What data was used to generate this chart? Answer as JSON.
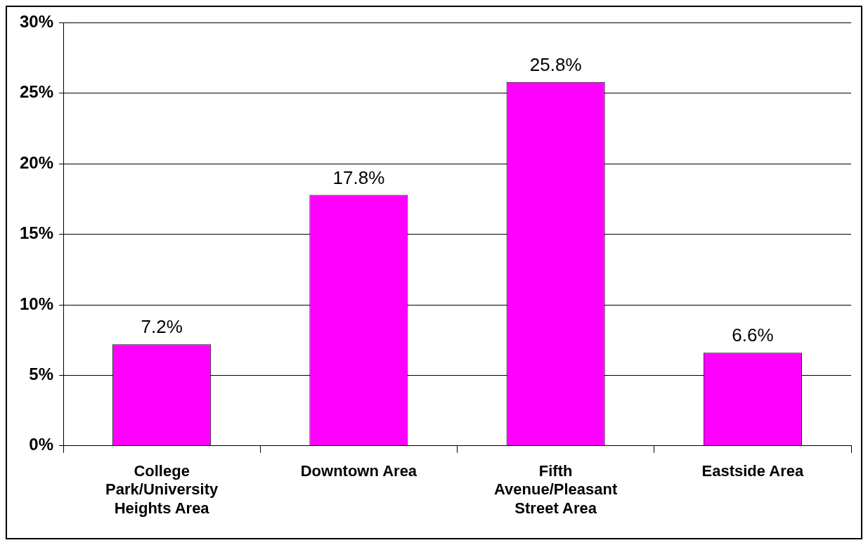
{
  "chart_data": {
    "type": "bar",
    "categories": [
      "College Park/University Heights Area",
      "Downtown Area",
      "Fifth Avenue/Pleasant Street Area",
      "Eastside Area"
    ],
    "values": [
      7.2,
      17.8,
      25.8,
      6.6
    ],
    "color": "#ff00ff",
    "value_labels": [
      "7.2%",
      "17.8%",
      "25.8%",
      "6.6%"
    ],
    "ylim": [
      0,
      30
    ],
    "yticks": [
      {
        "value": 0,
        "label": "0%"
      },
      {
        "value": 5,
        "label": "5%"
      },
      {
        "value": 10,
        "label": "10%"
      },
      {
        "value": 15,
        "label": "15%"
      },
      {
        "value": 20,
        "label": "20%"
      },
      {
        "value": 25,
        "label": "25%"
      },
      {
        "value": 30,
        "label": "30%"
      }
    ],
    "grid": "y",
    "legend": false
  }
}
